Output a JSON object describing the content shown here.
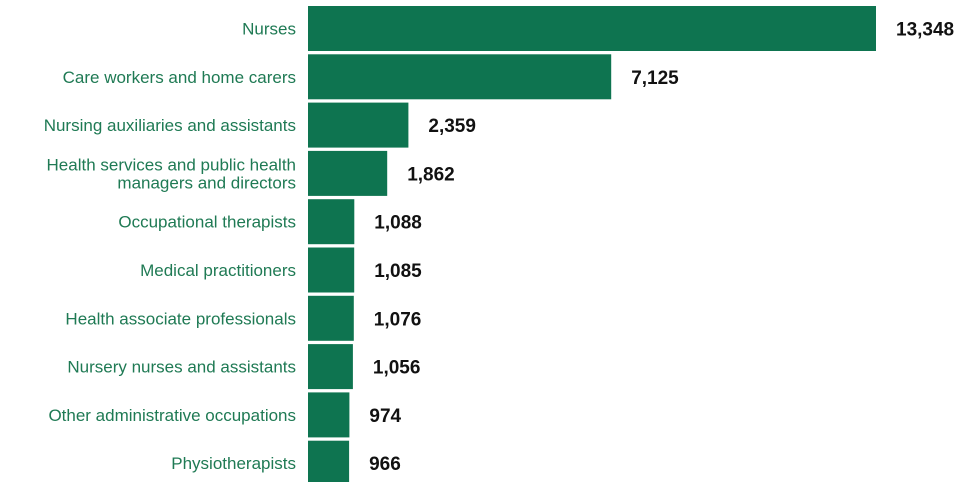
{
  "chart_data": {
    "type": "bar",
    "orientation": "horizontal",
    "categories": [
      [
        "Nurses"
      ],
      [
        "Care workers and home carers"
      ],
      [
        "Nursing auxiliaries and assistants"
      ],
      [
        "Health services and public health",
        "managers and directors"
      ],
      [
        "Occupational therapists"
      ],
      [
        "Medical practitioners"
      ],
      [
        "Health associate professionals"
      ],
      [
        "Nursery nurses and assistants"
      ],
      [
        "Other administrative occupations"
      ],
      [
        "Physiotherapists"
      ]
    ],
    "values": [
      13348,
      7125,
      2359,
      1862,
      1088,
      1085,
      1076,
      1056,
      974,
      966
    ],
    "data_labels": [
      "13,348",
      "7,125",
      "2,359",
      "1,862",
      "1,088",
      "1,085",
      "1,076",
      "1,056",
      "974",
      "966"
    ],
    "title": "",
    "xlabel": "",
    "ylabel": "",
    "xlim": [
      0,
      13348
    ],
    "grid": false,
    "legend": "none",
    "bar_color": "#0e7450",
    "label_color": "#1f7a54",
    "value_color": "#111111"
  }
}
